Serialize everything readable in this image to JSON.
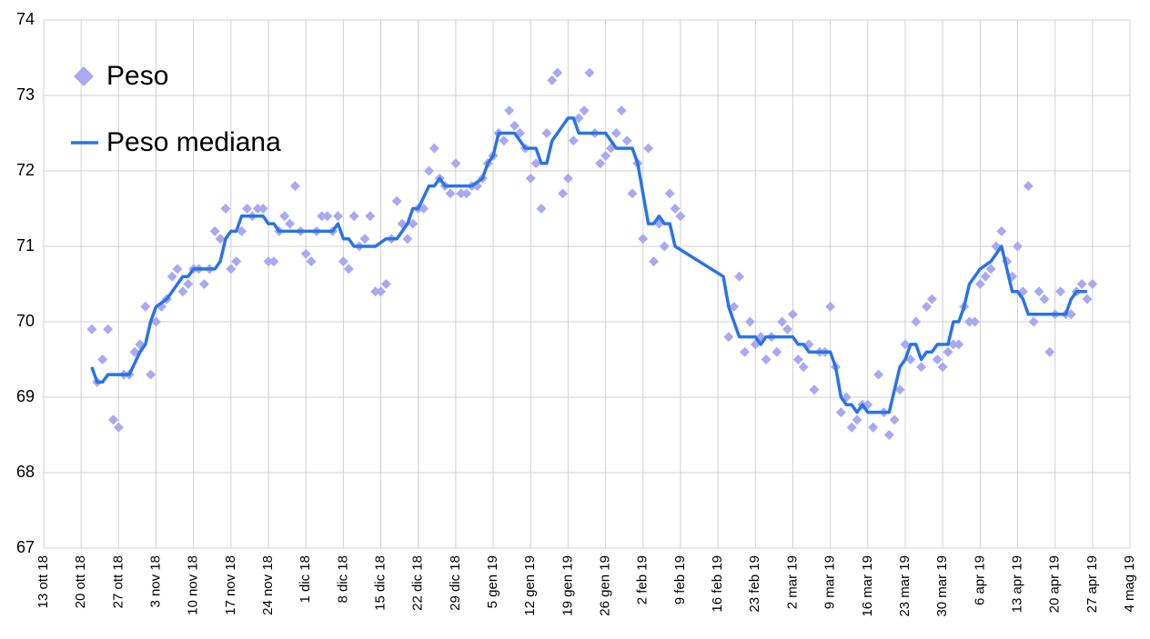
{
  "chart_data": {
    "type": "line",
    "legend": "top-left",
    "grid": true,
    "xlim": [
      "2018-10-13",
      "2019-05-04"
    ],
    "xticks": [
      {
        "value": "2018-10-13",
        "label": "13 ott 18"
      },
      {
        "value": "2018-10-20",
        "label": "20 ott 18"
      },
      {
        "value": "2018-10-27",
        "label": "27 ott 18"
      },
      {
        "value": "2018-11-03",
        "label": "3 nov 18"
      },
      {
        "value": "2018-11-10",
        "label": "10 nov 18"
      },
      {
        "value": "2018-11-17",
        "label": "17 nov 18"
      },
      {
        "value": "2018-11-24",
        "label": "24 nov 18"
      },
      {
        "value": "2018-12-01",
        "label": "1 dic 18"
      },
      {
        "value": "2018-12-08",
        "label": "8 dic 18"
      },
      {
        "value": "2018-12-15",
        "label": "15 dic 18"
      },
      {
        "value": "2018-12-22",
        "label": "22 dic 18"
      },
      {
        "value": "2018-12-29",
        "label": "29 dic 18"
      },
      {
        "value": "2019-01-05",
        "label": "5 gen 19"
      },
      {
        "value": "2019-01-12",
        "label": "12 gen 19"
      },
      {
        "value": "2019-01-19",
        "label": "19 gen 19"
      },
      {
        "value": "2019-01-26",
        "label": "26 gen 19"
      },
      {
        "value": "2019-02-02",
        "label": "2 feb 19"
      },
      {
        "value": "2019-02-09",
        "label": "9 feb 19"
      },
      {
        "value": "2019-02-16",
        "label": "16 feb 19"
      },
      {
        "value": "2019-02-23",
        "label": "23 feb 19"
      },
      {
        "value": "2019-03-02",
        "label": "2 mar 19"
      },
      {
        "value": "2019-03-09",
        "label": "9 mar 19"
      },
      {
        "value": "2019-03-16",
        "label": "16 mar 19"
      },
      {
        "value": "2019-03-23",
        "label": "23 mar 19"
      },
      {
        "value": "2019-03-30",
        "label": "30 mar 19"
      },
      {
        "value": "2019-04-06",
        "label": "6 apr 19"
      },
      {
        "value": "2019-04-13",
        "label": "13 apr 19"
      },
      {
        "value": "2019-04-20",
        "label": "20 apr 19"
      },
      {
        "value": "2019-04-27",
        "label": "27 apr 19"
      },
      {
        "value": "2019-05-04",
        "label": "4 mag 19"
      }
    ],
    "ylim": [
      67,
      74
    ],
    "yticks": [
      67,
      68,
      69,
      70,
      71,
      72,
      73,
      74
    ],
    "series": [
      {
        "name": "Peso",
        "type": "scatter",
        "color": "#a9a9f2",
        "x": [
          "2018-10-22",
          "2018-10-23",
          "2018-10-24",
          "2018-10-25",
          "2018-10-26",
          "2018-10-27",
          "2018-10-28",
          "2018-10-29",
          "2018-10-30",
          "2018-10-31",
          "2018-11-01",
          "2018-11-02",
          "2018-11-03",
          "2018-11-04",
          "2018-11-05",
          "2018-11-06",
          "2018-11-07",
          "2018-11-08",
          "2018-11-09",
          "2018-11-10",
          "2018-11-11",
          "2018-11-12",
          "2018-11-13",
          "2018-11-14",
          "2018-11-15",
          "2018-11-16",
          "2018-11-17",
          "2018-11-18",
          "2018-11-19",
          "2018-11-20",
          "2018-11-21",
          "2018-11-22",
          "2018-11-23",
          "2018-11-24",
          "2018-11-25",
          "2018-11-26",
          "2018-11-27",
          "2018-11-28",
          "2018-11-29",
          "2018-11-30",
          "2018-12-01",
          "2018-12-02",
          "2018-12-03",
          "2018-12-04",
          "2018-12-05",
          "2018-12-06",
          "2018-12-07",
          "2018-12-08",
          "2018-12-09",
          "2018-12-10",
          "2018-12-11",
          "2018-12-12",
          "2018-12-13",
          "2018-12-14",
          "2018-12-15",
          "2018-12-16",
          "2018-12-17",
          "2018-12-18",
          "2018-12-19",
          "2018-12-20",
          "2018-12-21",
          "2018-12-22",
          "2018-12-23",
          "2018-12-24",
          "2018-12-25",
          "2018-12-26",
          "2018-12-27",
          "2018-12-28",
          "2018-12-29",
          "2018-12-30",
          "2018-12-31",
          "2019-01-01",
          "2019-01-02",
          "2019-01-03",
          "2019-01-04",
          "2019-01-05",
          "2019-01-06",
          "2019-01-07",
          "2019-01-08",
          "2019-01-09",
          "2019-01-10",
          "2019-01-11",
          "2019-01-12",
          "2019-01-13",
          "2019-01-14",
          "2019-01-15",
          "2019-01-16",
          "2019-01-17",
          "2019-01-18",
          "2019-01-19",
          "2019-01-20",
          "2019-01-21",
          "2019-01-22",
          "2019-01-23",
          "2019-01-24",
          "2019-01-25",
          "2019-01-26",
          "2019-01-27",
          "2019-01-28",
          "2019-01-29",
          "2019-01-30",
          "2019-01-31",
          "2019-02-01",
          "2019-02-02",
          "2019-02-03",
          "2019-02-04",
          "2019-02-05",
          "2019-02-06",
          "2019-02-07",
          "2019-02-08",
          "2019-02-09",
          "2019-02-18",
          "2019-02-19",
          "2019-02-20",
          "2019-02-21",
          "2019-02-22",
          "2019-02-23",
          "2019-02-24",
          "2019-02-25",
          "2019-02-26",
          "2019-02-27",
          "2019-02-28",
          "2019-03-01",
          "2019-03-02",
          "2019-03-03",
          "2019-03-04",
          "2019-03-05",
          "2019-03-06",
          "2019-03-07",
          "2019-03-08",
          "2019-03-09",
          "2019-03-10",
          "2019-03-11",
          "2019-03-12",
          "2019-03-13",
          "2019-03-14",
          "2019-03-15",
          "2019-03-16",
          "2019-03-17",
          "2019-03-18",
          "2019-03-19",
          "2019-03-20",
          "2019-03-21",
          "2019-03-22",
          "2019-03-23",
          "2019-03-24",
          "2019-03-25",
          "2019-03-26",
          "2019-03-27",
          "2019-03-28",
          "2019-03-29",
          "2019-03-30",
          "2019-03-31",
          "2019-04-01",
          "2019-04-02",
          "2019-04-03",
          "2019-04-04",
          "2019-04-05",
          "2019-04-06",
          "2019-04-07",
          "2019-04-08",
          "2019-04-09",
          "2019-04-10",
          "2019-04-11",
          "2019-04-12",
          "2019-04-13",
          "2019-04-14",
          "2019-04-15",
          "2019-04-16",
          "2019-04-17",
          "2019-04-18",
          "2019-04-19",
          "2019-04-20",
          "2019-04-21",
          "2019-04-22",
          "2019-04-23",
          "2019-04-24",
          "2019-04-25",
          "2019-04-26",
          "2019-04-27"
        ],
        "values": [
          69.9,
          69.2,
          69.5,
          69.9,
          68.7,
          68.6,
          69.3,
          69.3,
          69.6,
          69.7,
          70.2,
          69.3,
          70.0,
          70.2,
          70.3,
          70.6,
          70.7,
          70.4,
          70.5,
          70.7,
          70.7,
          70.5,
          70.7,
          71.2,
          71.1,
          71.5,
          70.7,
          70.8,
          71.2,
          71.5,
          71.4,
          71.5,
          71.5,
          70.8,
          70.8,
          71.2,
          71.4,
          71.3,
          71.8,
          71.2,
          70.9,
          70.8,
          71.2,
          71.4,
          71.4,
          71.2,
          71.4,
          70.8,
          70.7,
          71.4,
          71.0,
          71.1,
          71.4,
          70.4,
          70.4,
          70.5,
          71.1,
          71.6,
          71.3,
          71.1,
          71.3,
          71.5,
          71.5,
          72.0,
          72.3,
          71.9,
          71.8,
          71.7,
          72.1,
          71.7,
          71.7,
          71.8,
          71.8,
          71.9,
          72.1,
          72.2,
          72.5,
          72.4,
          72.8,
          72.6,
          72.5,
          72.3,
          71.9,
          72.1,
          71.5,
          72.5,
          73.2,
          73.3,
          71.7,
          71.9,
          72.4,
          72.7,
          72.8,
          73.3,
          72.5,
          72.1,
          72.2,
          72.3,
          72.5,
          72.8,
          72.4,
          71.7,
          72.1,
          71.1,
          72.3,
          70.8,
          71.3,
          71.0,
          71.7,
          71.5,
          71.4,
          69.8,
          70.2,
          70.6,
          69.6,
          70.0,
          69.7,
          69.8,
          69.5,
          69.8,
          69.6,
          70.0,
          69.9,
          70.1,
          69.5,
          69.4,
          69.7,
          69.1,
          69.6,
          69.6,
          70.2,
          69.4,
          68.8,
          69.0,
          68.6,
          68.7,
          68.9,
          68.9,
          68.6,
          69.3,
          68.8,
          68.5,
          68.7,
          69.1,
          69.7,
          69.5,
          70.0,
          69.4,
          70.2,
          70.3,
          69.5,
          69.4,
          69.6,
          69.7,
          69.7,
          70.2,
          70.0,
          70.0,
          70.5,
          70.6,
          70.7,
          71.0,
          71.2,
          70.8,
          70.6,
          71.0,
          70.4,
          71.8,
          70.0,
          70.4,
          70.3,
          69.6,
          70.1,
          70.4,
          70.1,
          70.1,
          70.4,
          70.5,
          70.3,
          70.5
        ]
      },
      {
        "name": "Peso mediana",
        "type": "line",
        "color": "#2a73e8",
        "x": [
          "2018-10-22",
          "2018-10-23",
          "2018-10-24",
          "2018-10-25",
          "2018-10-27",
          "2018-10-29",
          "2018-10-31",
          "2018-11-01",
          "2018-11-02",
          "2018-11-03",
          "2018-11-05",
          "2018-11-08",
          "2018-11-09",
          "2018-11-10",
          "2018-11-12",
          "2018-11-14",
          "2018-11-15",
          "2018-11-16",
          "2018-11-17",
          "2018-11-18",
          "2018-11-19",
          "2018-11-23",
          "2018-11-24",
          "2018-11-25",
          "2018-11-26",
          "2018-11-29",
          "2018-12-06",
          "2018-12-07",
          "2018-12-08",
          "2018-12-09",
          "2018-12-10",
          "2018-12-14",
          "2018-12-16",
          "2018-12-18",
          "2018-12-20",
          "2018-12-21",
          "2018-12-22",
          "2018-12-24",
          "2018-12-25",
          "2018-12-26",
          "2018-12-27",
          "2019-01-01",
          "2019-01-03",
          "2019-01-04",
          "2019-01-05",
          "2019-01-06",
          "2019-01-09",
          "2019-01-11",
          "2019-01-13",
          "2019-01-14",
          "2019-01-15",
          "2019-01-16",
          "2019-01-17",
          "2019-01-19",
          "2019-01-20",
          "2019-01-21",
          "2019-01-26",
          "2019-01-27",
          "2019-01-28",
          "2019-01-31",
          "2019-02-01",
          "2019-02-03",
          "2019-02-04",
          "2019-02-05",
          "2019-02-06",
          "2019-02-07",
          "2019-02-08",
          "2019-02-17",
          "2019-02-18",
          "2019-02-19",
          "2019-02-20",
          "2019-02-23",
          "2019-02-24",
          "2019-02-25",
          "2019-03-02",
          "2019-03-03",
          "2019-03-04",
          "2019-03-05",
          "2019-03-09",
          "2019-03-10",
          "2019-03-11",
          "2019-03-12",
          "2019-03-13",
          "2019-03-14",
          "2019-03-15",
          "2019-03-16",
          "2019-03-20",
          "2019-03-21",
          "2019-03-22",
          "2019-03-23",
          "2019-03-24",
          "2019-03-25",
          "2019-03-26",
          "2019-03-27",
          "2019-03-28",
          "2019-03-29",
          "2019-03-31",
          "2019-04-01",
          "2019-04-02",
          "2019-04-03",
          "2019-04-04",
          "2019-04-05",
          "2019-04-06",
          "2019-04-08",
          "2019-04-09",
          "2019-04-10",
          "2019-04-11",
          "2019-04-12",
          "2019-04-13",
          "2019-04-14",
          "2019-04-15",
          "2019-04-16",
          "2019-04-18",
          "2019-04-19",
          "2019-04-20",
          "2019-04-22",
          "2019-04-23",
          "2019-04-24",
          "2019-04-26"
        ],
        "values": [
          69.4,
          69.2,
          69.2,
          69.3,
          69.3,
          69.3,
          69.6,
          69.7,
          70.0,
          70.2,
          70.3,
          70.6,
          70.6,
          70.7,
          70.7,
          70.7,
          70.8,
          71.1,
          71.2,
          71.2,
          71.4,
          71.4,
          71.3,
          71.3,
          71.2,
          71.2,
          71.2,
          71.3,
          71.1,
          71.1,
          71.0,
          71.0,
          71.1,
          71.1,
          71.3,
          71.5,
          71.5,
          71.8,
          71.8,
          71.9,
          71.8,
          71.8,
          71.9,
          72.1,
          72.2,
          72.5,
          72.5,
          72.3,
          72.3,
          72.1,
          72.1,
          72.4,
          72.5,
          72.7,
          72.7,
          72.5,
          72.5,
          72.4,
          72.3,
          72.3,
          72.1,
          71.3,
          71.3,
          71.4,
          71.3,
          71.3,
          71.0,
          70.6,
          70.2,
          70.0,
          69.8,
          69.8,
          69.7,
          69.8,
          69.8,
          69.7,
          69.7,
          69.6,
          69.6,
          69.4,
          69.0,
          68.9,
          68.9,
          68.8,
          68.9,
          68.8,
          68.8,
          69.1,
          69.4,
          69.5,
          69.7,
          69.7,
          69.5,
          69.6,
          69.6,
          69.7,
          69.7,
          70.0,
          70.0,
          70.2,
          70.5,
          70.6,
          70.7,
          70.8,
          70.9,
          71.0,
          70.7,
          70.4,
          70.4,
          70.3,
          70.1,
          70.1,
          70.1,
          70.1,
          70.1,
          70.1,
          70.3,
          70.4,
          70.4
        ]
      }
    ]
  }
}
